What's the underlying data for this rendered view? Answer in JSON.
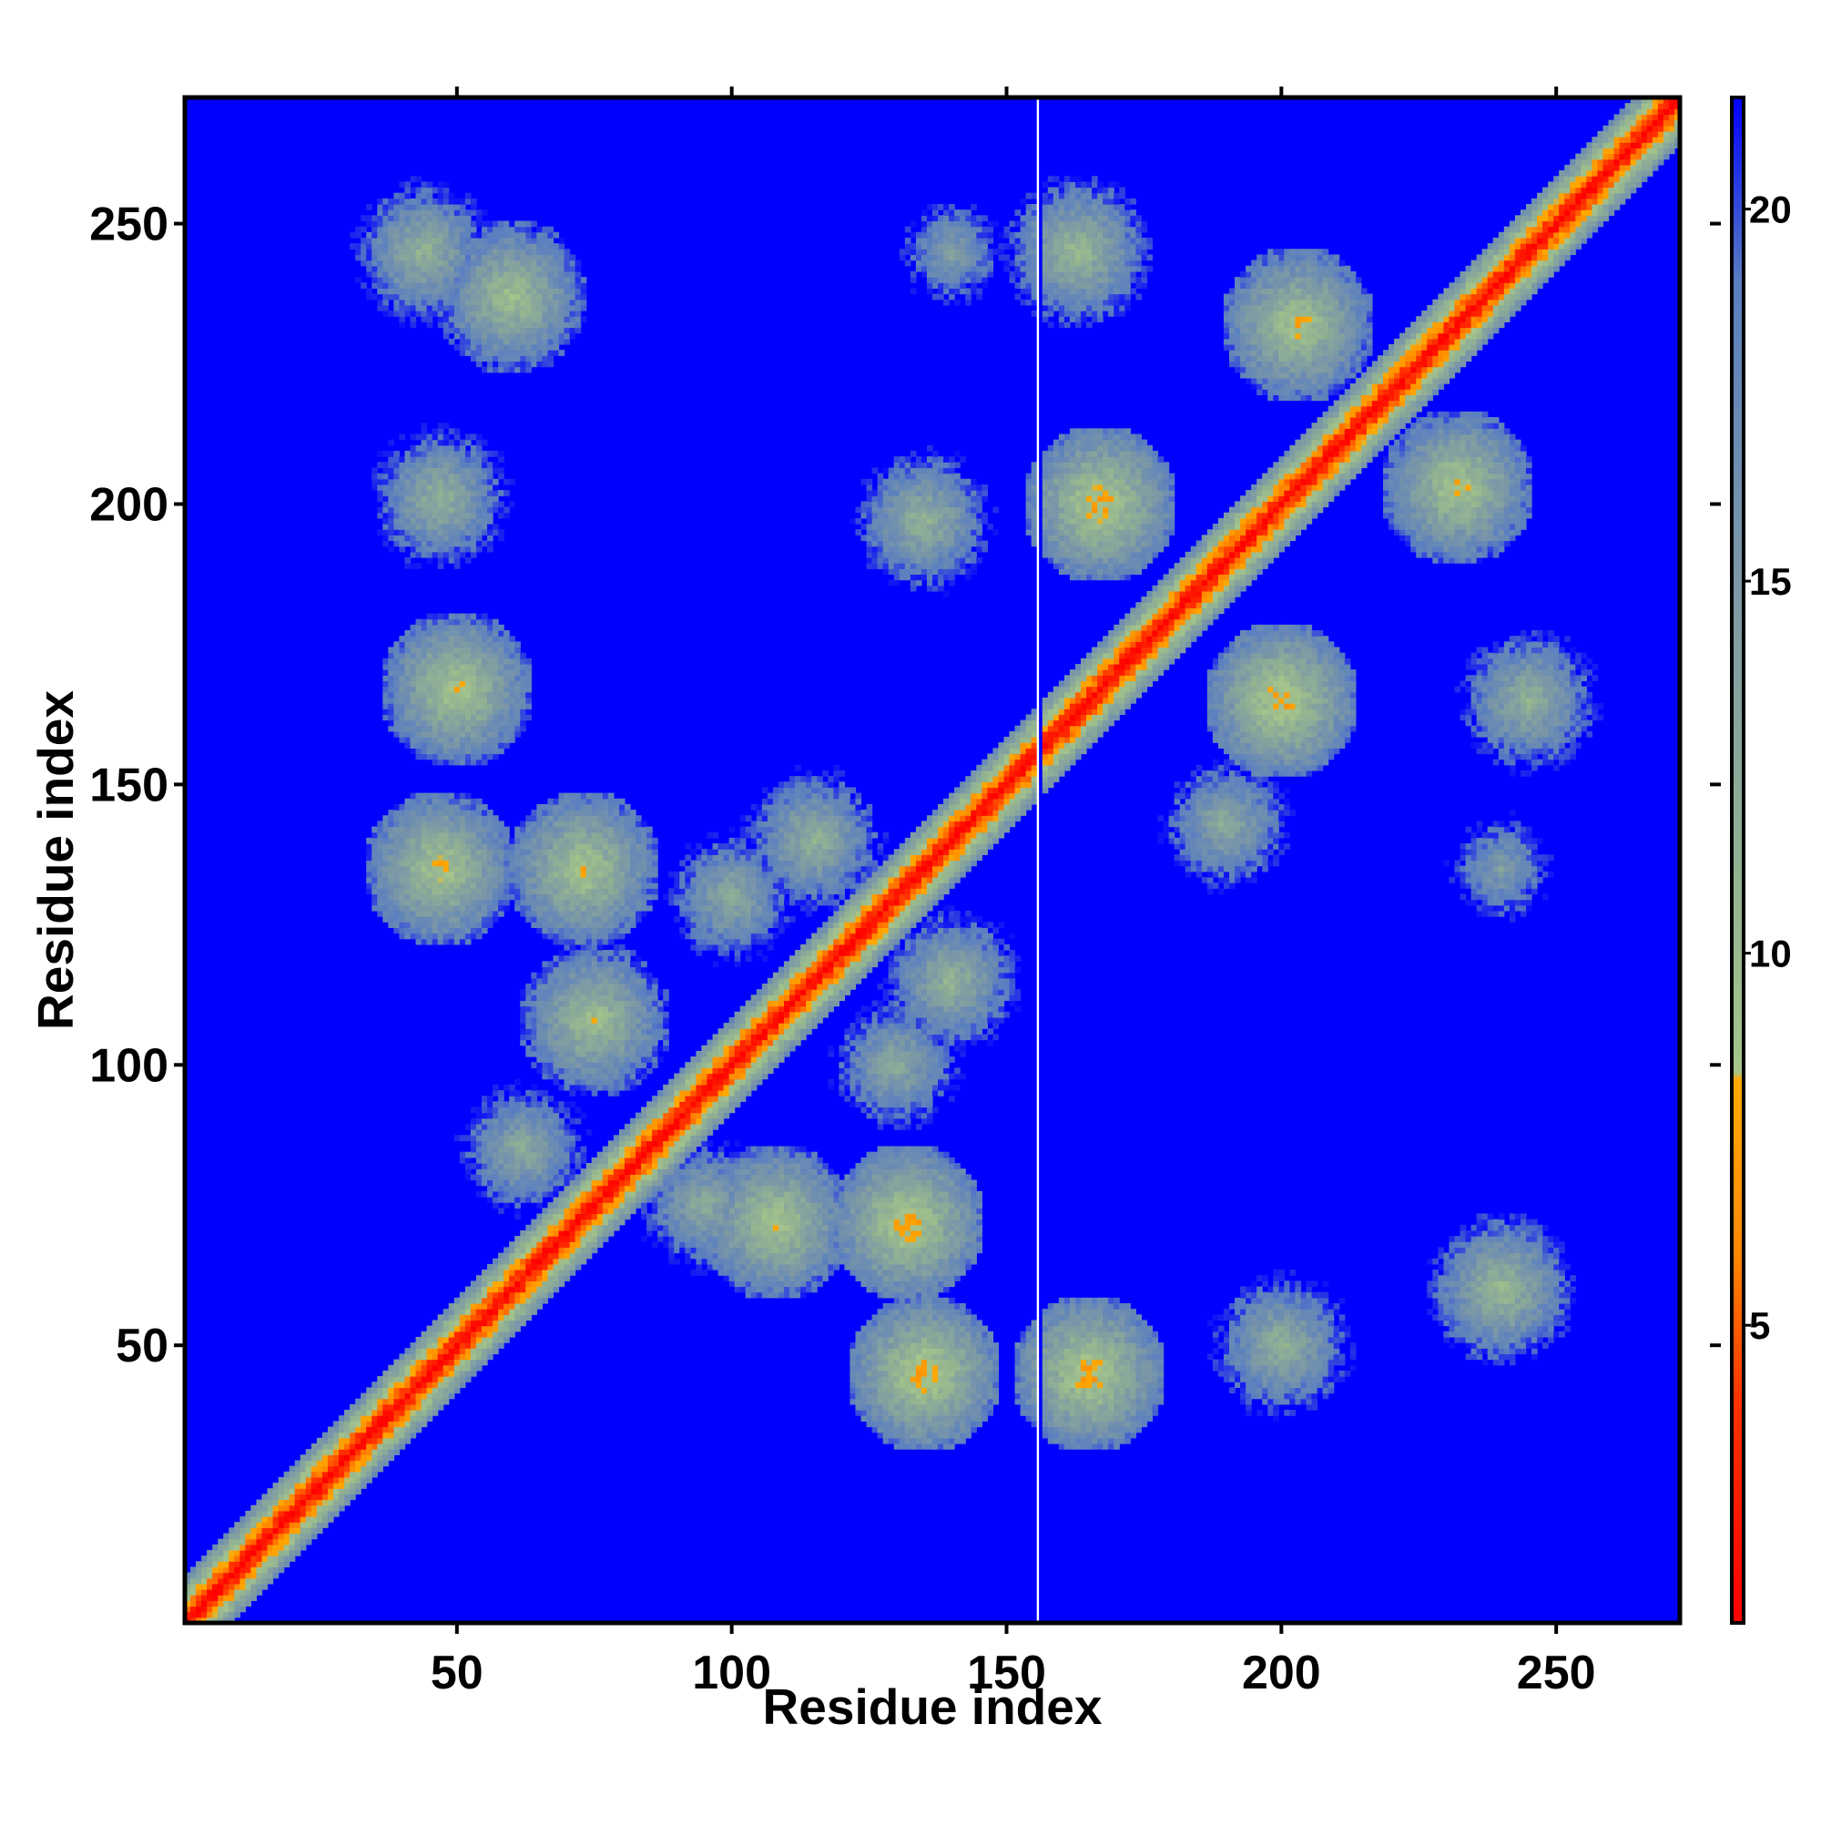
{
  "chart_data": {
    "type": "heatmap",
    "title": "",
    "xlabel": "Residue index",
    "ylabel": "Residue index",
    "n_residues": 272,
    "xlim": [
      1,
      272
    ],
    "ylim": [
      1,
      272
    ],
    "x_ticks": [
      50,
      100,
      150,
      200,
      250
    ],
    "y_ticks": [
      50,
      100,
      150,
      200,
      250
    ],
    "x_tick_labels": [
      "50",
      "100",
      "150",
      "200",
      "250"
    ],
    "y_tick_labels": [
      "50",
      "100",
      "150",
      "200",
      "250"
    ],
    "colorbar": {
      "label": "",
      "range": [
        1,
        21.5
      ],
      "ticks": [
        5,
        10,
        15,
        20
      ],
      "tick_labels": [
        "5",
        "10",
        "15",
        "20"
      ],
      "stops": [
        {
          "value": 1,
          "color": "#ff0000"
        },
        {
          "value": 4,
          "color": "#ff3300"
        },
        {
          "value": 6,
          "color": "#ff8800"
        },
        {
          "value": 8.3,
          "color": "#ffaa00"
        },
        {
          "value": 8.4,
          "color": "#a6c48a"
        },
        {
          "value": 11,
          "color": "#93b392"
        },
        {
          "value": 15,
          "color": "#7c98a6"
        },
        {
          "value": 19,
          "color": "#5a7fc0"
        },
        {
          "value": 21.5,
          "color": "#0000ff"
        }
      ]
    },
    "cutoff_color": "#0000ff",
    "missing_residue_column": 156,
    "contact_clusters": [
      {
        "x": 44,
        "y": 245,
        "value": 11
      },
      {
        "x": 60,
        "y": 237,
        "value": 9
      },
      {
        "x": 47,
        "y": 201,
        "value": 11
      },
      {
        "x": 50,
        "y": 167,
        "value": 8
      },
      {
        "x": 47,
        "y": 135,
        "value": 8
      },
      {
        "x": 73,
        "y": 135,
        "value": 8
      },
      {
        "x": 75,
        "y": 108,
        "value": 9
      },
      {
        "x": 108,
        "y": 72,
        "value": 8
      },
      {
        "x": 135,
        "y": 45,
        "value": 7
      },
      {
        "x": 132,
        "y": 72,
        "value": 7
      },
      {
        "x": 165,
        "y": 45,
        "value": 7
      },
      {
        "x": 167,
        "y": 200,
        "value": 7
      },
      {
        "x": 200,
        "y": 165,
        "value": 7
      },
      {
        "x": 203,
        "y": 232,
        "value": 8
      },
      {
        "x": 232,
        "y": 203,
        "value": 8
      },
      {
        "x": 200,
        "y": 50,
        "value": 11
      },
      {
        "x": 240,
        "y": 60,
        "value": 10
      },
      {
        "x": 135,
        "y": 197,
        "value": 11
      },
      {
        "x": 140,
        "y": 115,
        "value": 11
      },
      {
        "x": 115,
        "y": 140,
        "value": 11
      },
      {
        "x": 190,
        "y": 143,
        "value": 12
      },
      {
        "x": 240,
        "y": 135,
        "value": 14
      },
      {
        "x": 140,
        "y": 245,
        "value": 14
      },
      {
        "x": 163,
        "y": 245,
        "value": 10
      },
      {
        "x": 245,
        "y": 165,
        "value": 11
      },
      {
        "x": 62,
        "y": 85,
        "value": 12
      },
      {
        "x": 95,
        "y": 75,
        "value": 12
      },
      {
        "x": 100,
        "y": 130,
        "value": 12
      },
      {
        "x": 130,
        "y": 100,
        "value": 12
      }
    ],
    "grid": false,
    "legend": "colorbar right"
  }
}
